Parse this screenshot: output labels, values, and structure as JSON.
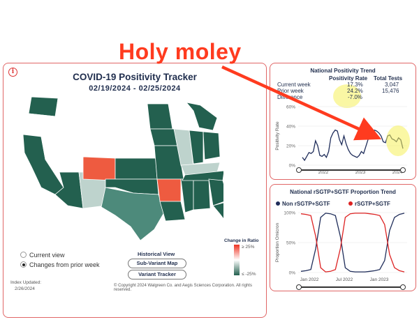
{
  "annotation": {
    "headline": "Holy moley",
    "arrow_color": "#ff3b1f"
  },
  "tracker": {
    "title": "COVID-19 Positivity Tracker",
    "date_range": "02/19/2024 - 02/25/2024",
    "info_icon": "i",
    "view_options": [
      {
        "label": "Current view",
        "selected": false
      },
      {
        "label": "Changes from prior week",
        "selected": true
      }
    ],
    "historical": {
      "title": "Historical View",
      "buttons": [
        "Sub-Variant Map",
        "Variant Tracker"
      ]
    },
    "ratio_legend": {
      "title": "Change in Ratio",
      "high": "≥ 25%",
      "low": "≤ -25%"
    },
    "index_updated_label": "Index Updated:",
    "index_updated_date": "2/26/2024",
    "copyright": "© Copyright 2024 Walgreen Co. and Aegis Sciences Corporation. All rights reserved.",
    "colors": {
      "dark": "#23604f",
      "mid": "#4d8a7b",
      "light": "#bed3cd",
      "white": "#ffffff",
      "orange": "#ee5b40"
    }
  },
  "national_trend": {
    "title": "National Positivity Trend",
    "headers": [
      "Positivity Rate",
      "Total Tests"
    ],
    "rows": [
      {
        "label": "Current week",
        "rate": "17.3%",
        "tests": "3,047"
      },
      {
        "label": "Prior week",
        "rate": "24.2%",
        "tests": "15,476"
      },
      {
        "label": "Difference",
        "rate": "-7.0%",
        "tests": ""
      }
    ],
    "chart_data": {
      "type": "line",
      "ylabel": "Positivity Rate",
      "yticks": [
        "0%",
        "20%",
        "40%",
        "60%"
      ],
      "ylim": [
        0,
        60
      ],
      "xticks": [
        "2022",
        "2023",
        "2024"
      ],
      "series": [
        {
          "values": [
            8,
            5,
            9,
            13,
            12,
            14,
            25,
            20,
            10,
            9,
            11,
            8,
            14,
            28,
            33,
            36,
            35,
            26,
            21,
            30,
            22,
            16,
            12,
            10,
            9,
            8,
            10,
            14,
            12,
            19,
            26,
            32,
            34,
            36,
            35,
            33,
            30,
            24,
            23,
            30,
            31,
            27,
            26,
            24,
            28,
            26,
            17
          ]
        }
      ],
      "line_color": "#1f2d5a"
    }
  },
  "proportion_trend": {
    "title": "National rSGTP+SGTF Proportion Trend",
    "legend": [
      {
        "name": "Non rSGTP+SGTF",
        "color": "#1f2d5a"
      },
      {
        "name": "rSGTP+SGTF",
        "color": "#dd2222"
      }
    ],
    "chart_data": {
      "type": "line",
      "ylabel": "Proportion Omicron",
      "yticks": [
        "0%",
        "50%",
        "100%"
      ],
      "ylim": [
        0,
        100
      ],
      "xticks": [
        "Jan 2022",
        "Jul 2022",
        "Jan 2023"
      ],
      "series": [
        {
          "name": "Non rSGTP+SGTF",
          "values": [
            2,
            3,
            5,
            40,
            92,
            99,
            98,
            95,
            60,
            8,
            2,
            1,
            1,
            1,
            2,
            3,
            5,
            20,
            70,
            92,
            97,
            99
          ]
        },
        {
          "name": "rSGTP+SGTF",
          "values": [
            98,
            97,
            95,
            60,
            8,
            1,
            2,
            5,
            40,
            92,
            98,
            99,
            99,
            99,
            98,
            97,
            95,
            80,
            30,
            8,
            3,
            1
          ]
        }
      ]
    }
  }
}
